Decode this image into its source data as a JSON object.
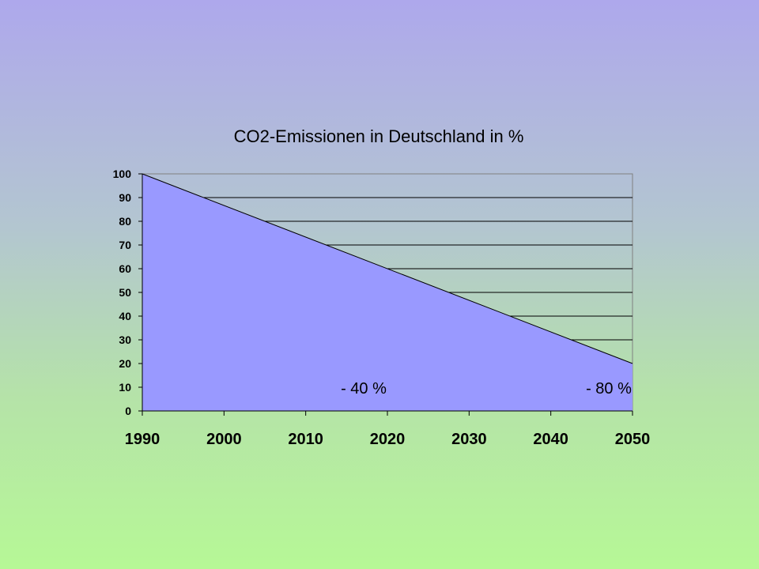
{
  "chart_data": {
    "type": "area",
    "title": "CO2-Emissionen in Deutschland in %",
    "xlabel": "",
    "ylabel": "",
    "x": [
      1990,
      2050
    ],
    "values": [
      100,
      20
    ],
    "xlim": [
      1990,
      2050
    ],
    "ylim": [
      0,
      100
    ],
    "x_ticks": [
      1990,
      2000,
      2010,
      2020,
      2030,
      2040,
      2050
    ],
    "y_ticks": [
      0,
      10,
      20,
      30,
      40,
      50,
      60,
      70,
      80,
      90,
      100
    ],
    "grid": true,
    "legend": "none",
    "fill_color": "#9999ff",
    "annotations": [
      {
        "text": "- 40 %",
        "x": 2020,
        "y": 10
      },
      {
        "text": "- 80 %",
        "x": 2050,
        "y": 10
      }
    ]
  }
}
